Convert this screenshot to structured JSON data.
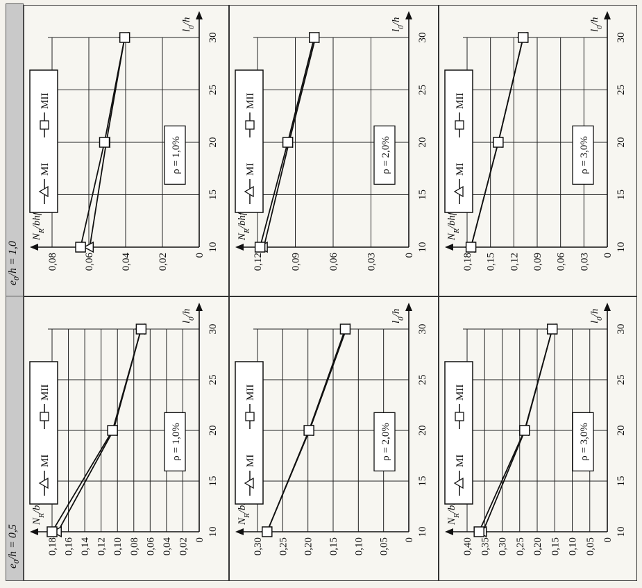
{
  "columns": [
    {
      "header": "e0/h = 0,5",
      "header_html": [
        "e",
        "0",
        "/h = 0,5"
      ]
    },
    {
      "header": "e0/h = 1,0",
      "header_html": [
        "e",
        "0",
        "/h = 1,0"
      ]
    }
  ],
  "shared": {
    "x_axis_label": "l0/h",
    "y_axis_label": "NR/bhfcm",
    "legend": [
      "MI",
      "MII"
    ],
    "marker_MI": "triangle",
    "marker_MII": "square"
  },
  "chart_data": [
    {
      "id": "e05-r1",
      "type": "line",
      "col": 0,
      "row": 0,
      "rho": "ρ = 1,0%",
      "x": [
        10,
        20,
        30
      ],
      "xticks": [
        "10",
        "15",
        "20",
        "25",
        "30"
      ],
      "xlim": [
        10,
        30
      ],
      "yticks": [
        "0",
        "0,02",
        "0,04",
        "0,06",
        "0,08",
        "0,10",
        "0,12",
        "0,14",
        "0,16",
        "0,18"
      ],
      "ylim": [
        0,
        0.18
      ],
      "series": [
        {
          "name": "MI",
          "values": [
            0.173,
            0.105,
            0.071
          ]
        },
        {
          "name": "MII",
          "values": [
            0.18,
            0.106,
            0.071
          ]
        }
      ]
    },
    {
      "id": "e05-r2",
      "type": "line",
      "col": 0,
      "row": 1,
      "rho": "ρ = 2,0%",
      "x": [
        10,
        20,
        30
      ],
      "xticks": [
        "10",
        "15",
        "20",
        "25",
        "30"
      ],
      "xlim": [
        10,
        30
      ],
      "yticks": [
        "0",
        "0,05",
        "0,10",
        "0,15",
        "0,20",
        "0,25",
        "0,30"
      ],
      "ylim": [
        0,
        0.3
      ],
      "series": [
        {
          "name": "MI",
          "values": [
            0.281,
            0.197,
            0.124
          ]
        },
        {
          "name": "MII",
          "values": [
            0.281,
            0.198,
            0.126
          ]
        }
      ]
    },
    {
      "id": "e05-r3",
      "type": "line",
      "col": 0,
      "row": 2,
      "rho": "ρ = 3,0%",
      "x": [
        10,
        20,
        30
      ],
      "xticks": [
        "10",
        "15",
        "20",
        "25",
        "30"
      ],
      "xlim": [
        10,
        30
      ],
      "yticks": [
        "0",
        "0,05",
        "0,10",
        "0,15",
        "0,20",
        "0,25",
        "0,30",
        "0,35",
        "0,40"
      ],
      "ylim": [
        0,
        0.4
      ],
      "series": [
        {
          "name": "MI",
          "values": [
            0.355,
            0.235,
            0.157
          ]
        },
        {
          "name": "MII",
          "values": [
            0.366,
            0.236,
            0.157
          ]
        }
      ]
    },
    {
      "id": "e10-r1",
      "type": "line",
      "col": 1,
      "row": 0,
      "rho": "ρ = 1,0%",
      "x": [
        10,
        20,
        30
      ],
      "xticks": [
        "10",
        "15",
        "20",
        "25",
        "30"
      ],
      "xlim": [
        10,
        30
      ],
      "yticks": [
        "0",
        "0,02",
        "0,04",
        "0,06",
        "0,08"
      ],
      "ylim": [
        0,
        0.08
      ],
      "series": [
        {
          "name": "MI",
          "values": [
            0.0595,
            0.0505,
            0.0405
          ]
        },
        {
          "name": "MII",
          "values": [
            0.0645,
            0.0515,
            0.0405
          ]
        }
      ]
    },
    {
      "id": "e10-r2",
      "type": "line",
      "col": 1,
      "row": 1,
      "rho": "ρ = 2,0%",
      "x": [
        10,
        20,
        30
      ],
      "xticks": [
        "10",
        "15",
        "20",
        "25",
        "30"
      ],
      "xlim": [
        10,
        30
      ],
      "yticks": [
        "0",
        "0,03",
        "0,06",
        "0,09",
        "0,12"
      ],
      "ylim": [
        0,
        0.12
      ],
      "series": [
        {
          "name": "MI",
          "values": [
            0.115,
            0.095,
            0.074
          ]
        },
        {
          "name": "MII",
          "values": [
            0.118,
            0.096,
            0.075
          ]
        }
      ]
    },
    {
      "id": "e10-r3",
      "type": "line",
      "col": 1,
      "row": 2,
      "rho": "ρ = 3,0%",
      "x": [
        10,
        20,
        30
      ],
      "xticks": [
        "10",
        "15",
        "20",
        "25",
        "30"
      ],
      "xlim": [
        10,
        30
      ],
      "yticks": [
        "0",
        "0,03",
        "0,06",
        "0,09",
        "0,12",
        "0,15",
        "0,18"
      ],
      "ylim": [
        0,
        0.18
      ],
      "series": [
        {
          "name": "MI",
          "values": [
            0.175,
            0.14,
            0.108
          ]
        },
        {
          "name": "MII",
          "values": [
            0.175,
            0.14,
            0.108
          ]
        }
      ]
    }
  ]
}
